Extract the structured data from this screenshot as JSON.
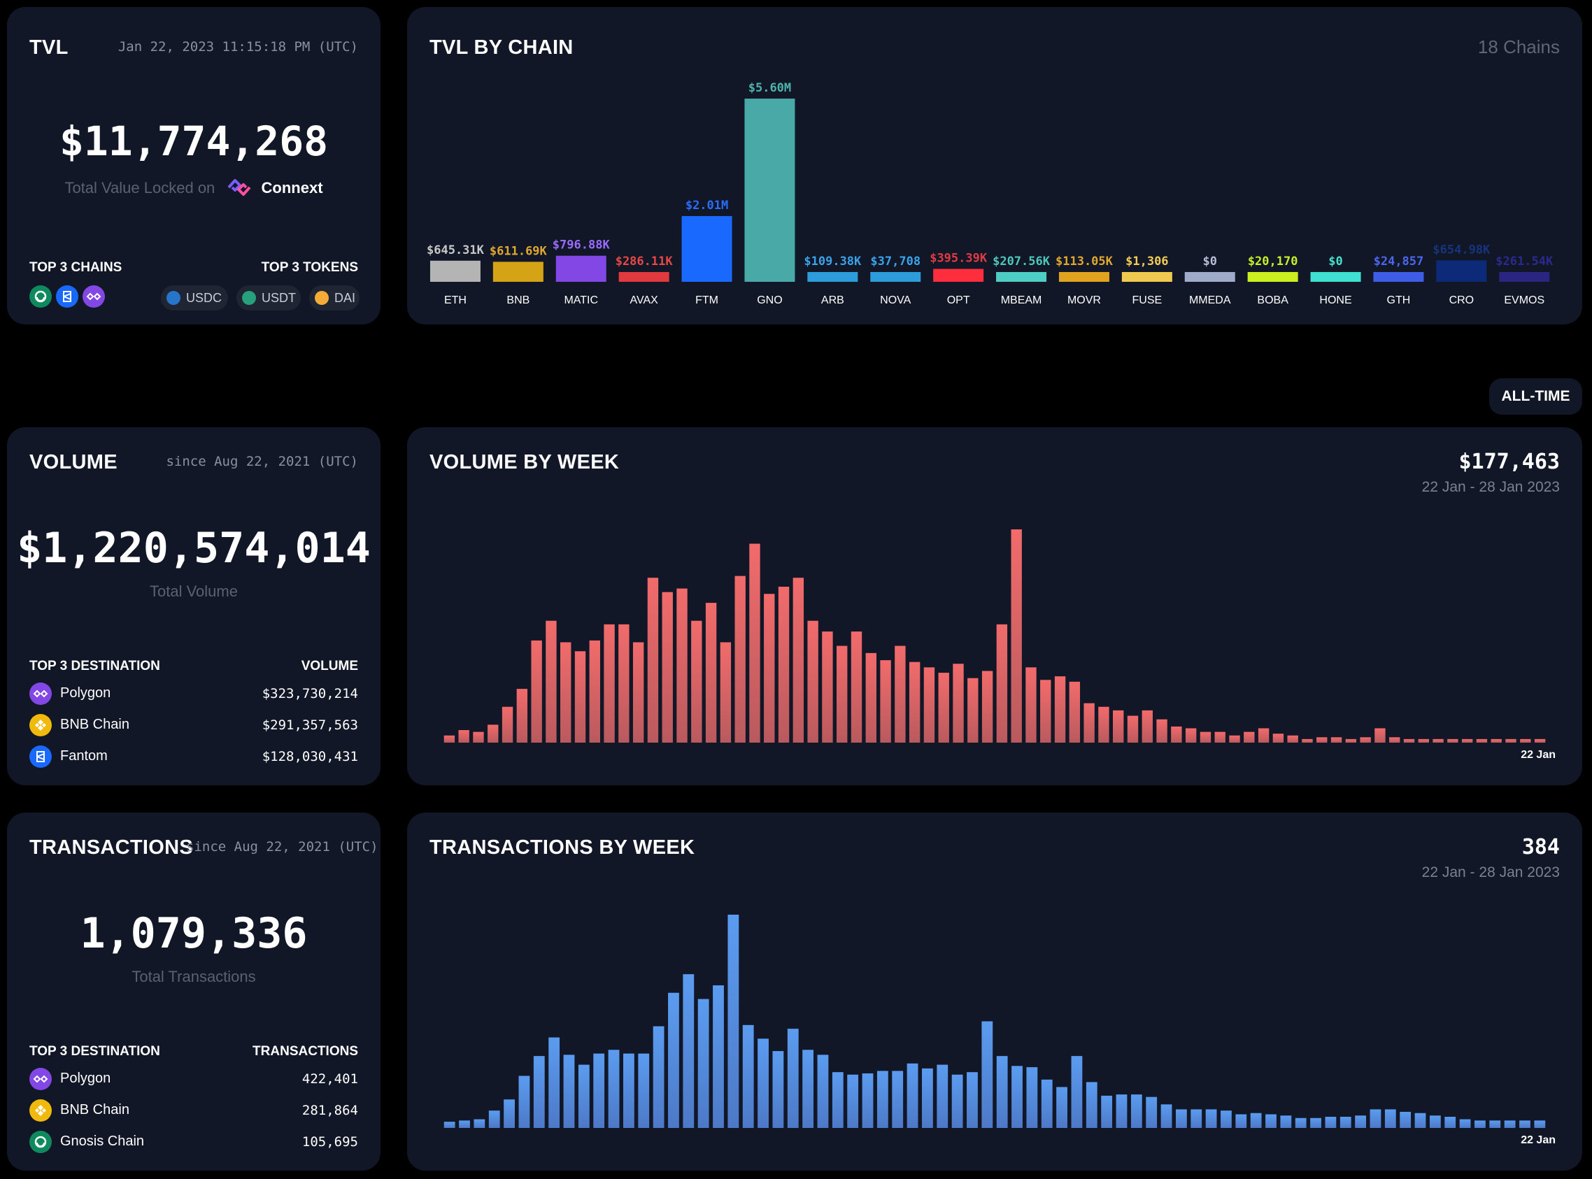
{
  "tvl": {
    "title": "TVL",
    "timestamp": "Jan 22, 2023 11:15:18 PM (UTC)",
    "value": "$11,774,268",
    "subtitle": "Total Value Locked on",
    "brand": "Connext",
    "chains_label": "TOP 3 CHAINS",
    "tokens_label": "TOP 3 TOKENS",
    "chain_icons": [
      {
        "name": "gnosis-icon",
        "color": "#0f8a5f"
      },
      {
        "name": "fantom-icon",
        "color": "#1969ff"
      },
      {
        "name": "polygon-icon",
        "color": "#8247e5"
      }
    ],
    "tokens": [
      {
        "label": "USDC",
        "color": "#2775ca"
      },
      {
        "label": "USDT",
        "color": "#26a17b"
      },
      {
        "label": "DAI",
        "color": "#f5ac37"
      }
    ]
  },
  "tvl_by_chain": {
    "title": "TVL BY CHAIN",
    "count_label": "18 Chains"
  },
  "filter": {
    "label": "ALL-TIME"
  },
  "volume": {
    "title": "VOLUME",
    "since": "since Aug 22, 2021 (UTC)",
    "value": "$1,220,574,014",
    "subtitle": "Total Volume",
    "dest_label": "TOP 3 DESTINATION",
    "value_label": "VOLUME",
    "rows": [
      {
        "name": "Polygon",
        "value": "$323,730,214",
        "color": "#8247e5",
        "icon": "polygon-icon"
      },
      {
        "name": "BNB Chain",
        "value": "$291,357,563",
        "color": "#f0b90b",
        "icon": "bnb-icon"
      },
      {
        "name": "Fantom",
        "value": "$128,030,431",
        "color": "#1969ff",
        "icon": "fantom-icon"
      }
    ]
  },
  "volume_by_week": {
    "title": "VOLUME BY WEEK",
    "value": "$177,463",
    "range": "22 Jan - 28 Jan 2023",
    "x_end_label": "22 Jan"
  },
  "transactions": {
    "title": "TRANSACTIONS",
    "since": "since Aug 22, 2021 (UTC)",
    "value": "1,079,336",
    "subtitle": "Total Transactions",
    "dest_label": "TOP 3 DESTINATION",
    "value_label": "TRANSACTIONS",
    "rows": [
      {
        "name": "Polygon",
        "value": "422,401",
        "color": "#8247e5",
        "icon": "polygon-icon"
      },
      {
        "name": "BNB Chain",
        "value": "281,864",
        "color": "#f0b90b",
        "icon": "bnb-icon"
      },
      {
        "name": "Gnosis Chain",
        "value": "105,695",
        "color": "#0f8a5f",
        "icon": "gnosis-icon"
      }
    ]
  },
  "transactions_by_week": {
    "title": "TRANSACTIONS BY WEEK",
    "value": "384",
    "range": "22 Jan - 28 Jan 2023",
    "x_end_label": "22 Jan"
  },
  "chart_data": [
    {
      "type": "bar",
      "title": "TVL BY CHAIN",
      "categories": [
        "ETH",
        "BNB",
        "MATIC",
        "AVAX",
        "FTM",
        "GNO",
        "ARB",
        "NOVA",
        "OPT",
        "MBEAM",
        "MOVR",
        "FUSE",
        "MMEDA",
        "BOBA",
        "HONE",
        "GTH",
        "CRO",
        "EVMOS"
      ],
      "values": [
        645310,
        611690,
        796880,
        286110,
        2010000,
        5600000,
        109380,
        37708,
        395390,
        207560,
        113050,
        1306,
        0,
        20170,
        0,
        24857,
        654980,
        261540
      ],
      "labels": [
        "$645.31K",
        "$611.69K",
        "$796.88K",
        "$286.11K",
        "$2.01M",
        "$5.60M",
        "$109.38K",
        "$37,708",
        "$395.39K",
        "$207.56K",
        "$113.05K",
        "$1,306",
        "$0",
        "$20,170",
        "$0",
        "$24,857",
        "$654.98K",
        "$261.54K"
      ],
      "colors": [
        "#b4b4b4",
        "#d4a316",
        "#8247e5",
        "#e0393e",
        "#1969ff",
        "#48a9a6",
        "#2d9cdb",
        "#2d9cdb",
        "#ff2e3e",
        "#4ecdc4",
        "#e0a31f",
        "#f0c94f",
        "#a0aac9",
        "#ccf01f",
        "#40e0d0",
        "#3e5de6",
        "#0c2a77",
        "#2a2580"
      ],
      "label_colors": [
        "#c8c8c8",
        "#e0a82e",
        "#9a6bff",
        "#e64848",
        "#2a6dff",
        "#4fb3ad",
        "#3aa3ea",
        "#3aa3ea",
        "#e23a44",
        "#4fc6bc",
        "#e0a82e",
        "#f2cc55",
        "#b6bed8",
        "#c8ee2a",
        "#46e0cf",
        "#4a67ee",
        "#16347e",
        "#2a2a8e"
      ]
    },
    {
      "type": "bar",
      "title": "VOLUME BY WEEK",
      "x_end": "22 Jan",
      "values": [
        2,
        3.5,
        3,
        5,
        10,
        15,
        28.5,
        34,
        28,
        25.5,
        28.5,
        33,
        33,
        28,
        46,
        42,
        43,
        34,
        39,
        28,
        46.5,
        55.5,
        41.5,
        43.5,
        46,
        34,
        31,
        27,
        31,
        25,
        23,
        27,
        22.5,
        21,
        19.5,
        22,
        18,
        20,
        33,
        59.5,
        21,
        17.5,
        18.5,
        17,
        11,
        10,
        9,
        7.5,
        9,
        6.5,
        4.5,
        4,
        3,
        3,
        2,
        3,
        4,
        2.5,
        2,
        1,
        1.5,
        1.5,
        1,
        1.5,
        4,
        1.5,
        1,
        1,
        1,
        1,
        1,
        1,
        1,
        1,
        1,
        1
      ]
    },
    {
      "type": "bar",
      "title": "TRANSACTIONS BY WEEK",
      "x_end": "22 Jan",
      "values": [
        0.5,
        0.6,
        0.7,
        1.4,
        2.3,
        4.2,
        5.8,
        7.3,
        5.9,
        5.1,
        6,
        6.3,
        6,
        6,
        8.2,
        10.9,
        12.4,
        10.4,
        11.5,
        17.2,
        8.3,
        7.2,
        6.2,
        8,
        6.3,
        5.9,
        4.5,
        4.3,
        4.4,
        4.6,
        4.6,
        5.2,
        4.8,
        5.1,
        4.3,
        4.5,
        8.6,
        5.8,
        5,
        4.9,
        3.9,
        3.3,
        5.8,
        3.7,
        2.6,
        2.7,
        2.7,
        2.5,
        1.9,
        1.5,
        1.5,
        1.5,
        1.4,
        1.1,
        1.2,
        1.1,
        1,
        0.8,
        0.8,
        0.9,
        0.9,
        1,
        1.5,
        1.5,
        1.3,
        1.2,
        1,
        0.9,
        0.7,
        0.6,
        0.6,
        0.6,
        0.6,
        0.6
      ]
    }
  ]
}
